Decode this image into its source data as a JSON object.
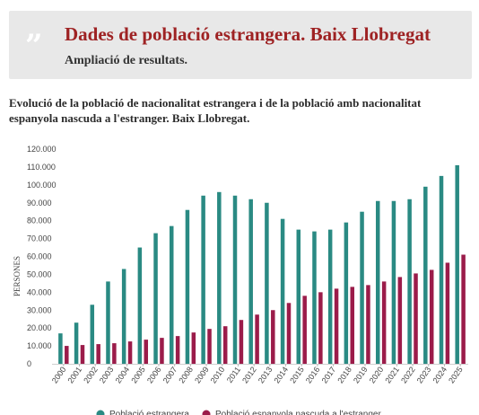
{
  "header": {
    "quote_glyph": "”",
    "title": "Dades de població estrangera. Baix Llobregat",
    "subtitle": "Ampliació de resultats."
  },
  "chart_data": {
    "type": "bar",
    "title": "Evolució de la població de nacionalitat estrangera i de la població amb nacionalitat espanyola nascuda a l'estranger. Baix Llobregat.",
    "ylabel": "PERSONES",
    "xlabel": "",
    "ylim": [
      0,
      120000
    ],
    "yticks": [
      "0",
      "10.000",
      "20.000",
      "30.000",
      "40.000",
      "50.000",
      "60.000",
      "70.000",
      "80.000",
      "90.000",
      "100.000",
      "110.000",
      "120.000"
    ],
    "categories": [
      "2000",
      "2001",
      "2002",
      "2003",
      "2004",
      "2005",
      "2006",
      "2007",
      "2008",
      "2009",
      "2010",
      "2011",
      "2012",
      "2013",
      "2014",
      "2015",
      "2016",
      "2017",
      "2018",
      "2019",
      "2020",
      "2021",
      "2022",
      "2023",
      "2024",
      "2025"
    ],
    "series": [
      {
        "name": "Població estrangera",
        "color": "#2a8a83",
        "values": [
          17000,
          23000,
          33000,
          46000,
          53000,
          65000,
          73000,
          77000,
          86000,
          94000,
          96000,
          94000,
          92000,
          90000,
          81000,
          75000,
          74000,
          75000,
          79000,
          85000,
          91000,
          91000,
          92000,
          99000,
          105000,
          111000
        ]
      },
      {
        "name": "Població espanyola nascuda a l'estranger",
        "color": "#9b1c4a",
        "values": [
          10000,
          10500,
          11000,
          11500,
          12500,
          13500,
          14500,
          15500,
          17500,
          19500,
          21000,
          24500,
          27500,
          30000,
          34000,
          38000,
          40000,
          42000,
          43000,
          44000,
          46000,
          48500,
          50500,
          52500,
          56500,
          61000
        ]
      }
    ],
    "legend": "bottom"
  }
}
